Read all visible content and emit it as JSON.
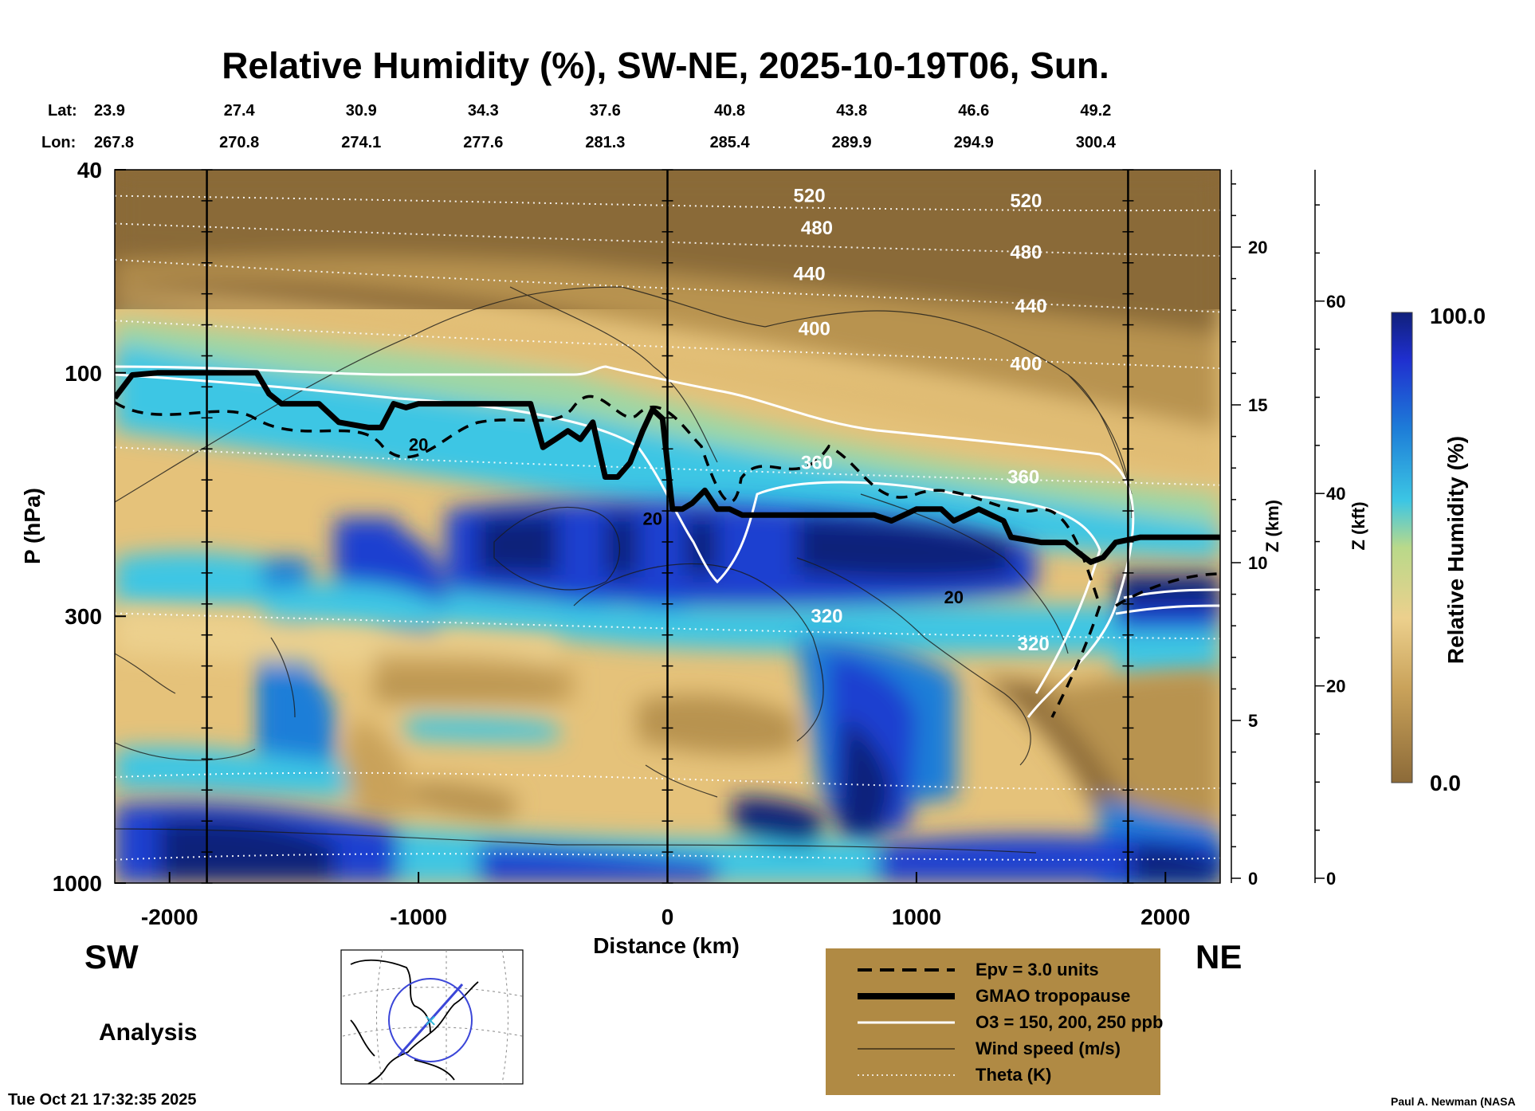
{
  "chart_data": {
    "type": "heatmap",
    "title": "Relative Humidity (%), SW-NE, 2025-10-19T06, Sun.",
    "xlabel": "Distance (km)",
    "ylabel": "P (hPa)",
    "z_km_label": "Z (km)",
    "z_kft_label": "Z (kft)",
    "xlim": [
      -2220,
      2220
    ],
    "ylim": [
      1000,
      40
    ],
    "x_ticks": [
      -2000,
      -1000,
      0,
      1000,
      2000
    ],
    "x_tick_labels": [
      "-2000",
      "-1000",
      "0",
      "1000",
      "2000"
    ],
    "p_ticks": [
      40,
      100,
      300,
      1000
    ],
    "p_tick_labels": [
      "40",
      "100",
      "300",
      "1000"
    ],
    "z_km_ticks": [
      0,
      5,
      10,
      15,
      20
    ],
    "z_km_tick_labels": [
      "0",
      "5",
      "10",
      "15",
      "20"
    ],
    "z_kft_ticks": [
      0,
      20,
      40,
      60
    ],
    "z_kft_tick_labels": [
      "0",
      "20",
      "40",
      "60"
    ],
    "lat_label": "Lat:",
    "lon_label": "Lon:",
    "lat": [
      "23.9",
      "27.4",
      "30.9",
      "34.3",
      "37.6",
      "40.8",
      "43.8",
      "46.6",
      "49.2"
    ],
    "lon": [
      "267.8",
      "270.8",
      "274.1",
      "277.6",
      "281.3",
      "285.4",
      "289.9",
      "294.9",
      "300.4"
    ],
    "latlon_distance_km": [
      -2220,
      -1720,
      -1230,
      -740,
      -250,
      250,
      740,
      1230,
      1720
    ],
    "vertical_lines_km": [
      -1850,
      0,
      1850
    ],
    "tropopause": {
      "name": "GMAO tropopause",
      "x": [
        -2220,
        -2150,
        -2050,
        -1950,
        -1800,
        -1650,
        -1600,
        -1550,
        -1400,
        -1320,
        -1200,
        -1150,
        -1100,
        -1050,
        -1000,
        -900,
        -700,
        -550,
        -500,
        -450,
        -400,
        -350,
        -300,
        -250,
        -200,
        -150,
        -100,
        -60,
        -20,
        20,
        60,
        100,
        150,
        200,
        250,
        300,
        400,
        500,
        700,
        800,
        830,
        900,
        1000,
        1100,
        1150,
        1250,
        1300,
        1350,
        1380,
        1500,
        1600,
        1650,
        1700,
        1750,
        1800,
        1900,
        2100,
        2220
      ],
      "p": [
        112,
        101,
        100,
        100,
        100,
        100,
        110,
        115,
        115,
        125,
        128,
        128,
        115,
        117,
        115,
        115,
        115,
        115,
        140,
        135,
        130,
        135,
        125,
        160,
        160,
        150,
        130,
        118,
        123,
        185,
        185,
        180,
        170,
        185,
        185,
        190,
        190,
        190,
        190,
        190,
        190,
        195,
        185,
        185,
        195,
        185,
        190,
        195,
        210,
        215,
        215,
        225,
        235,
        230,
        215,
        210,
        210,
        210
      ]
    },
    "theta_levels": [
      {
        "K": 320,
        "p_left": 296,
        "p_right": 332,
        "label": "320"
      },
      {
        "K": 360,
        "p_left": 140,
        "p_right": 166,
        "label": "360"
      },
      {
        "K": 400,
        "p_left": 79,
        "p_right": 98,
        "label": "400"
      },
      {
        "K": 440,
        "p_left": 60,
        "p_right": 76,
        "label": "440"
      },
      {
        "K": 480,
        "p_left": 51,
        "p_right": 59,
        "label": "480"
      },
      {
        "K": 520,
        "p_left": 45,
        "p_right": 48,
        "label": "520"
      }
    ],
    "wind_labels": [
      "20",
      "20",
      "20"
    ],
    "colorbar": {
      "label": "Relative Humidity (%)",
      "min": "0.0",
      "max": "100.0"
    },
    "legend": [
      {
        "style": "dashed",
        "text": "Epv = 3.0 units"
      },
      {
        "style": "thick",
        "text": "GMAO tropopause"
      },
      {
        "style": "white",
        "text": "O3 = 150, 200, 250 ppb"
      },
      {
        "style": "thin",
        "text": "Wind speed (m/s)"
      },
      {
        "style": "dotted",
        "text": "Theta (K)"
      }
    ],
    "colors": {
      "dry": "#8c6a38",
      "tan": "#e9c785",
      "cyan": "#3cc6e4",
      "blue": "#1f3fd0",
      "navy": "#10207a",
      "legend_bg": "#b08a44"
    }
  },
  "labels": {
    "sw": "SW",
    "ne": "NE",
    "analysis": "Analysis",
    "timestamp": "Tue Oct 21 17:32:35 2025",
    "credit": "Paul A. Newman (NASA"
  }
}
